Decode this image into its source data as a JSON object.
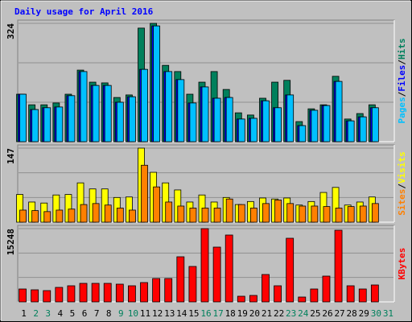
{
  "title": "Daily usage for April 2016",
  "legend_separator": "/",
  "chart_data": [
    {
      "type": "bar",
      "ylim": [
        0,
        324
      ],
      "yticks": [
        324
      ],
      "series": [
        {
          "name": "Hits",
          "color": "#00805c",
          "values": [
            130,
            101,
            101,
            106,
            130,
            196,
            163,
            161,
            121,
            128,
            311,
            324,
            209,
            192,
            130,
            163,
            192,
            143,
            79,
            73,
            119,
            163,
            168,
            55,
            90,
            101,
            179,
            62,
            77,
            101,
            null
          ]
        },
        {
          "name": "Files",
          "color": "#0000ff",
          "values": [
            130,
            88,
            93,
            95,
            126,
            192,
            154,
            154,
            108,
            123,
            198,
            317,
            192,
            170,
            106,
            150,
            119,
            121,
            62,
            64,
            112,
            93,
            128,
            44,
            86,
            99,
            165,
            57,
            68,
            93,
            null
          ]
        },
        {
          "name": "Pages",
          "color": "#00c0ff",
          "values": [
            130,
            88,
            93,
            95,
            126,
            192,
            154,
            154,
            108,
            123,
            198,
            317,
            192,
            170,
            106,
            150,
            119,
            121,
            62,
            64,
            112,
            93,
            128,
            44,
            86,
            99,
            165,
            57,
            68,
            93,
            null
          ]
        }
      ]
    },
    {
      "type": "bar",
      "ylim": [
        0,
        147
      ],
      "yticks": [
        147
      ],
      "series": [
        {
          "name": "Visits",
          "color": "#ffff00",
          "values": [
            55,
            40,
            38,
            54,
            55,
            78,
            66,
            66,
            49,
            50,
            147,
            99,
            78,
            64,
            40,
            54,
            40,
            49,
            35,
            41,
            48,
            46,
            48,
            34,
            41,
            59,
            69,
            34,
            40,
            50,
            null
          ]
        },
        {
          "name": "Sites",
          "color": "#ff8000",
          "values": [
            24,
            23,
            21,
            24,
            26,
            35,
            37,
            34,
            28,
            24,
            113,
            70,
            40,
            32,
            28,
            28,
            28,
            46,
            35,
            28,
            37,
            44,
            37,
            32,
            32,
            31,
            28,
            31,
            32,
            37,
            null
          ]
        }
      ]
    },
    {
      "type": "bar",
      "ylim": [
        0,
        15248
      ],
      "yticks": [
        15248
      ],
      "categories": [
        "1",
        "2",
        "3",
        "4",
        "5",
        "6",
        "7",
        "8",
        "9",
        "10",
        "11",
        "12",
        "13",
        "14",
        "15",
        "16",
        "17",
        "18",
        "19",
        "20",
        "21",
        "22",
        "23",
        "24",
        "25",
        "26",
        "27",
        "28",
        "29",
        "30",
        "31"
      ],
      "category_colors": [
        "#000000",
        "#00805c",
        "#00805c",
        "#000000",
        "#000000",
        "#000000",
        "#000000",
        "#000000",
        "#00805c",
        "#00805c",
        "#000000",
        "#000000",
        "#000000",
        "#000000",
        "#000000",
        "#00805c",
        "#00805c",
        "#000000",
        "#000000",
        "#000000",
        "#000000",
        "#000000",
        "#00805c",
        "#00805c",
        "#000000",
        "#000000",
        "#000000",
        "#000000",
        "#000000",
        "#00805c",
        "#00805c"
      ],
      "series": [
        {
          "name": "KBytes",
          "color": "#ff0000",
          "values": [
            2682,
            2514,
            2347,
            3017,
            3352,
            3855,
            3855,
            3855,
            3687,
            3352,
            4022,
            4860,
            4860,
            9385,
            7374,
            15248,
            11397,
            13911,
            1173,
            1341,
            5698,
            3352,
            13240,
            1006,
            2682,
            5363,
            14913,
            3352,
            2682,
            3520,
            null
          ]
        }
      ]
    }
  ]
}
